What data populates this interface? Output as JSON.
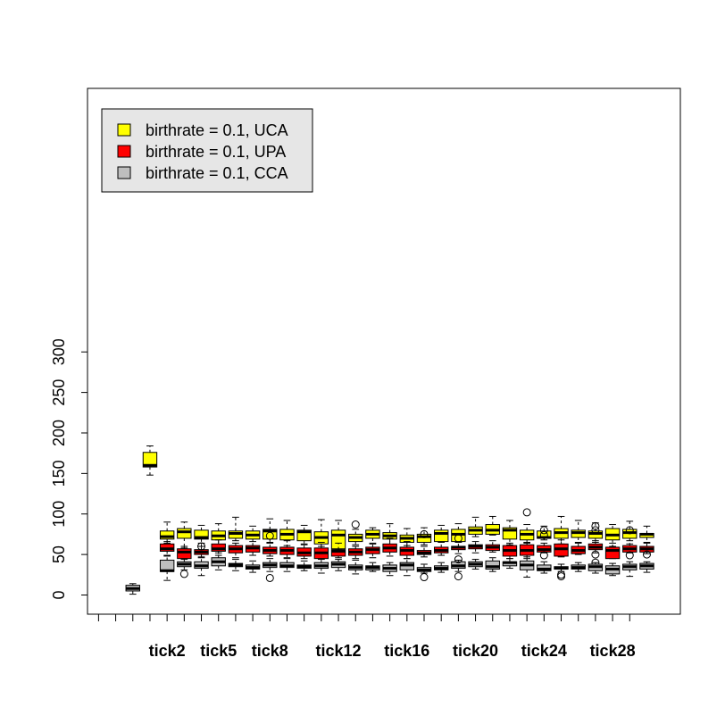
{
  "chart_data": {
    "type": "boxplot",
    "ylim": [
      -12,
      312
    ],
    "yticks": [
      0,
      50,
      100,
      150,
      200,
      250,
      300
    ],
    "x_positions": 32,
    "x_tick_labels": [
      {
        "pos": 5,
        "label": "tick2"
      },
      {
        "pos": 8,
        "label": "tick5"
      },
      {
        "pos": 11,
        "label": "tick8"
      },
      {
        "pos": 15,
        "label": "tick12"
      },
      {
        "pos": 19,
        "label": "tick16"
      },
      {
        "pos": 23,
        "label": "tick20"
      },
      {
        "pos": 27,
        "label": "tick24"
      },
      {
        "pos": 31,
        "label": "tick28"
      }
    ],
    "legend": {
      "placement": "top-left",
      "background": "#e6e6e6",
      "entries": [
        {
          "label": "birthrate = 0.1, UCA",
          "color": "#ffff00"
        },
        {
          "label": "birthrate = 0.1, UPA",
          "color": "#ff0000"
        },
        {
          "label": "birthrate = 0.1, CCA",
          "color": "#bebebe"
        }
      ]
    },
    "grid": false,
    "series": [
      {
        "name": "birthrate = 0.1, UCA",
        "color": "#ffff00",
        "boxes": [
          {
            "pos": 4,
            "lw": 148,
            "q1": 158,
            "med": 160,
            "q3": 176,
            "uw": 184,
            "out": []
          },
          {
            "pos": 5,
            "lw": 64,
            "q1": 69,
            "med": 72,
            "q3": 79,
            "uw": 90,
            "out": []
          },
          {
            "pos": 6,
            "lw": 58,
            "q1": 70,
            "med": 78,
            "q3": 82,
            "uw": 90,
            "out": []
          },
          {
            "pos": 7,
            "lw": 60,
            "q1": 69,
            "med": 71,
            "q3": 80,
            "uw": 86,
            "out": []
          },
          {
            "pos": 8,
            "lw": 61,
            "q1": 68,
            "med": 73,
            "q3": 79,
            "uw": 88,
            "out": []
          },
          {
            "pos": 9,
            "lw": 64,
            "q1": 70,
            "med": 76,
            "q3": 79,
            "uw": 96,
            "out": []
          },
          {
            "pos": 10,
            "lw": 60,
            "q1": 69,
            "med": 74,
            "q3": 79,
            "uw": 85,
            "out": []
          },
          {
            "pos": 11,
            "lw": 64,
            "q1": 69,
            "med": 79,
            "q3": 81,
            "uw": 94,
            "out": [
              73
            ]
          },
          {
            "pos": 12,
            "lw": 61,
            "q1": 68,
            "med": 75,
            "q3": 81,
            "uw": 92,
            "out": []
          },
          {
            "pos": 13,
            "lw": 62,
            "q1": 67,
            "med": 78,
            "q3": 80,
            "uw": 86,
            "out": []
          },
          {
            "pos": 14,
            "lw": 60,
            "q1": 63,
            "med": 71,
            "q3": 78,
            "uw": 93,
            "out": []
          },
          {
            "pos": 15,
            "lw": 57,
            "q1": 57,
            "med": 74,
            "q3": 80,
            "uw": 92,
            "out": []
          },
          {
            "pos": 16,
            "lw": 60,
            "q1": 66,
            "med": 71,
            "q3": 75,
            "uw": 81,
            "out": [
              87
            ]
          },
          {
            "pos": 17,
            "lw": 63,
            "q1": 70,
            "med": 75,
            "q3": 80,
            "uw": 83,
            "out": []
          },
          {
            "pos": 18,
            "lw": 59,
            "q1": 69,
            "med": 73,
            "q3": 77,
            "uw": 88,
            "out": []
          },
          {
            "pos": 19,
            "lw": 61,
            "q1": 65,
            "med": 70,
            "q3": 74,
            "uw": 82,
            "out": []
          },
          {
            "pos": 20,
            "lw": 60,
            "q1": 65,
            "med": 72,
            "q3": 75,
            "uw": 83,
            "out": [
              75
            ]
          },
          {
            "pos": 21,
            "lw": 66,
            "q1": 66,
            "med": 76,
            "q3": 80,
            "uw": 86,
            "out": []
          },
          {
            "pos": 22,
            "lw": 65,
            "q1": 66,
            "med": 75,
            "q3": 81,
            "uw": 88,
            "out": [
              70
            ]
          },
          {
            "pos": 23,
            "lw": 72,
            "q1": 75,
            "med": 80,
            "q3": 84,
            "uw": 96,
            "out": []
          },
          {
            "pos": 24,
            "lw": 74,
            "q1": 75,
            "med": 80,
            "q3": 87,
            "uw": 97,
            "out": []
          },
          {
            "pos": 25,
            "lw": 62,
            "q1": 69,
            "med": 80,
            "q3": 83,
            "uw": 92,
            "out": []
          },
          {
            "pos": 26,
            "lw": 64,
            "q1": 68,
            "med": 75,
            "q3": 80,
            "uw": 87,
            "out": [
              102
            ]
          },
          {
            "pos": 27,
            "lw": 68,
            "q1": 70,
            "med": 71,
            "q3": 79,
            "uw": 85,
            "out": [
              74,
              80
            ]
          },
          {
            "pos": 28,
            "lw": 63,
            "q1": 70,
            "med": 77,
            "q3": 82,
            "uw": 97,
            "out": []
          },
          {
            "pos": 29,
            "lw": 64,
            "q1": 71,
            "med": 77,
            "q3": 80,
            "uw": 92,
            "out": []
          },
          {
            "pos": 30,
            "lw": 65,
            "q1": 70,
            "med": 76,
            "q3": 79,
            "uw": 89,
            "out": [
              80,
              85
            ]
          },
          {
            "pos": 31,
            "lw": 60,
            "q1": 68,
            "med": 74,
            "q3": 82,
            "uw": 87,
            "out": []
          },
          {
            "pos": 32,
            "lw": 63,
            "q1": 70,
            "med": 77,
            "q3": 81,
            "uw": 91,
            "out": [
              80
            ]
          },
          {
            "pos": 33,
            "lw": 65,
            "q1": 71,
            "med": 75,
            "q3": 76,
            "uw": 85,
            "out": []
          }
        ]
      },
      {
        "name": "birthrate = 0.1, UPA",
        "color": "#ff0000",
        "boxes": [
          {
            "pos": 5,
            "lw": 48,
            "q1": 54,
            "med": 57,
            "q3": 63,
            "uw": 66,
            "out": []
          },
          {
            "pos": 6,
            "lw": 45,
            "q1": 45,
            "med": 53,
            "q3": 57,
            "uw": 60,
            "out": [
              26
            ]
          },
          {
            "pos": 7,
            "lw": 46,
            "q1": 50,
            "med": 53,
            "q3": 56,
            "uw": 64,
            "out": [
              60
            ]
          },
          {
            "pos": 8,
            "lw": 49,
            "q1": 54,
            "med": 57,
            "q3": 63,
            "uw": 68,
            "out": []
          },
          {
            "pos": 9,
            "lw": 46,
            "q1": 52,
            "med": 57,
            "q3": 61,
            "uw": 67,
            "out": []
          },
          {
            "pos": 10,
            "lw": 49,
            "q1": 53,
            "med": 58,
            "q3": 61,
            "uw": 66,
            "out": []
          },
          {
            "pos": 11,
            "lw": 48,
            "q1": 51,
            "med": 55,
            "q3": 59,
            "uw": 65,
            "out": []
          },
          {
            "pos": 12,
            "lw": 46,
            "q1": 50,
            "med": 55,
            "q3": 59,
            "uw": 67,
            "out": []
          },
          {
            "pos": 13,
            "lw": 45,
            "q1": 48,
            "med": 52,
            "q3": 58,
            "uw": 63,
            "out": []
          },
          {
            "pos": 14,
            "lw": 45,
            "q1": 45,
            "med": 52,
            "q3": 58,
            "uw": 65,
            "out": []
          },
          {
            "pos": 15,
            "lw": 46,
            "q1": 48,
            "med": 54,
            "q3": 56,
            "uw": 64,
            "out": []
          },
          {
            "pos": 16,
            "lw": 45,
            "q1": 49,
            "med": 53,
            "q3": 57,
            "uw": 62,
            "out": []
          },
          {
            "pos": 17,
            "lw": 46,
            "q1": 51,
            "med": 56,
            "q3": 59,
            "uw": 64,
            "out": []
          },
          {
            "pos": 18,
            "lw": 48,
            "q1": 53,
            "med": 58,
            "q3": 63,
            "uw": 70,
            "out": []
          },
          {
            "pos": 19,
            "lw": 45,
            "q1": 49,
            "med": 55,
            "q3": 59,
            "uw": 66,
            "out": []
          },
          {
            "pos": 20,
            "lw": 47,
            "q1": 50,
            "med": 52,
            "q3": 55,
            "uw": 62,
            "out": []
          },
          {
            "pos": 21,
            "lw": 49,
            "q1": 52,
            "med": 55,
            "q3": 59,
            "uw": 65,
            "out": []
          },
          {
            "pos": 22,
            "lw": 51,
            "q1": 56,
            "med": 59,
            "q3": 60,
            "uw": 65,
            "out": []
          },
          {
            "pos": 23,
            "lw": 52,
            "q1": 57,
            "med": 60,
            "q3": 62,
            "uw": 66,
            "out": []
          },
          {
            "pos": 24,
            "lw": 53,
            "q1": 55,
            "med": 59,
            "q3": 62,
            "uw": 67,
            "out": []
          },
          {
            "pos": 25,
            "lw": 45,
            "q1": 48,
            "med": 55,
            "q3": 61,
            "uw": 64,
            "out": []
          },
          {
            "pos": 26,
            "lw": 45,
            "q1": 49,
            "med": 55,
            "q3": 62,
            "uw": 65,
            "out": []
          },
          {
            "pos": 27,
            "lw": 52,
            "q1": 53,
            "med": 56,
            "q3": 61,
            "uw": 64,
            "out": [
              49
            ]
          },
          {
            "pos": 28,
            "lw": 47,
            "q1": 48,
            "med": 57,
            "q3": 63,
            "uw": 68,
            "out": []
          },
          {
            "pos": 29,
            "lw": 50,
            "q1": 51,
            "med": 55,
            "q3": 60,
            "uw": 65,
            "out": []
          },
          {
            "pos": 30,
            "lw": 52,
            "q1": 56,
            "med": 59,
            "q3": 63,
            "uw": 67,
            "out": [
              40,
              50
            ]
          },
          {
            "pos": 31,
            "lw": 45,
            "q1": 45,
            "med": 55,
            "q3": 59,
            "uw": 64,
            "out": []
          },
          {
            "pos": 32,
            "lw": 52,
            "q1": 53,
            "med": 57,
            "q3": 61,
            "uw": 67,
            "out": [
              49
            ]
          },
          {
            "pos": 33,
            "lw": 51,
            "q1": 53,
            "med": 57,
            "q3": 60,
            "uw": 64,
            "out": [
              50
            ]
          }
        ]
      },
      {
        "name": "birthrate = 0.1, CCA",
        "color": "#bebebe",
        "boxes": [
          {
            "pos": 3,
            "lw": 1,
            "q1": 5,
            "med": 8,
            "q3": 12,
            "uw": 14,
            "out": []
          },
          {
            "pos": 5,
            "lw": 18,
            "q1": 29,
            "med": 30,
            "q3": 43,
            "uw": 49,
            "out": []
          },
          {
            "pos": 6,
            "lw": 31,
            "q1": 35,
            "med": 38,
            "q3": 41,
            "uw": 44,
            "out": []
          },
          {
            "pos": 7,
            "lw": 24,
            "q1": 33,
            "med": 36,
            "q3": 41,
            "uw": 47,
            "out": []
          },
          {
            "pos": 8,
            "lw": 31,
            "q1": 36,
            "med": 41,
            "q3": 46,
            "uw": 52,
            "out": []
          },
          {
            "pos": 9,
            "lw": 30,
            "q1": 35,
            "med": 37,
            "q3": 39,
            "uw": 44,
            "out": []
          },
          {
            "pos": 10,
            "lw": 28,
            "q1": 32,
            "med": 34,
            "q3": 37,
            "uw": 42,
            "out": []
          },
          {
            "pos": 11,
            "lw": 29,
            "q1": 34,
            "med": 37,
            "q3": 40,
            "uw": 45,
            "out": [
              21
            ]
          },
          {
            "pos": 12,
            "lw": 29,
            "q1": 34,
            "med": 36,
            "q3": 40,
            "uw": 45,
            "out": []
          },
          {
            "pos": 13,
            "lw": 30,
            "q1": 33,
            "med": 35,
            "q3": 37,
            "uw": 42,
            "out": []
          },
          {
            "pos": 14,
            "lw": 27,
            "q1": 33,
            "med": 36,
            "q3": 40,
            "uw": 44,
            "out": []
          },
          {
            "pos": 15,
            "lw": 30,
            "q1": 34,
            "med": 38,
            "q3": 41,
            "uw": 44,
            "out": []
          },
          {
            "pos": 16,
            "lw": 26,
            "q1": 31,
            "med": 34,
            "q3": 37,
            "uw": 43,
            "out": []
          },
          {
            "pos": 17,
            "lw": 29,
            "q1": 31,
            "med": 34,
            "q3": 36,
            "uw": 40,
            "out": []
          },
          {
            "pos": 18,
            "lw": 24,
            "q1": 29,
            "med": 33,
            "q3": 37,
            "uw": 40,
            "out": []
          },
          {
            "pos": 19,
            "lw": 24,
            "q1": 31,
            "med": 37,
            "q3": 40,
            "uw": 45,
            "out": []
          },
          {
            "pos": 20,
            "lw": 27,
            "q1": 29,
            "med": 31,
            "q3": 34,
            "uw": 38,
            "out": [
              22
            ]
          },
          {
            "pos": 21,
            "lw": 28,
            "q1": 31,
            "med": 33,
            "q3": 36,
            "uw": 40,
            "out": []
          },
          {
            "pos": 22,
            "lw": 29,
            "q1": 33,
            "med": 36,
            "q3": 41,
            "uw": 43,
            "out": [
              23,
              44
            ]
          },
          {
            "pos": 23,
            "lw": 32,
            "q1": 35,
            "med": 38,
            "q3": 41,
            "uw": 44,
            "out": []
          },
          {
            "pos": 24,
            "lw": 29,
            "q1": 32,
            "med": 35,
            "q3": 42,
            "uw": 46,
            "out": []
          },
          {
            "pos": 25,
            "lw": 33,
            "q1": 36,
            "med": 40,
            "q3": 41,
            "uw": 45,
            "out": []
          },
          {
            "pos": 26,
            "lw": 22,
            "q1": 31,
            "med": 37,
            "q3": 42,
            "uw": 47,
            "out": []
          },
          {
            "pos": 27,
            "lw": 27,
            "q1": 30,
            "med": 32,
            "q3": 37,
            "uw": 41,
            "out": []
          },
          {
            "pos": 28,
            "lw": 29,
            "q1": 32,
            "med": 33,
            "q3": 35,
            "uw": 38,
            "out": [
              23,
              25
            ]
          },
          {
            "pos": 29,
            "lw": 29,
            "q1": 32,
            "med": 34,
            "q3": 37,
            "uw": 40,
            "out": []
          },
          {
            "pos": 30,
            "lw": 27,
            "q1": 30,
            "med": 35,
            "q3": 38,
            "uw": 40,
            "out": []
          },
          {
            "pos": 31,
            "lw": 24,
            "q1": 26,
            "med": 32,
            "q3": 36,
            "uw": 39,
            "out": []
          },
          {
            "pos": 32,
            "lw": 23,
            "q1": 31,
            "med": 35,
            "q3": 38,
            "uw": 41,
            "out": []
          },
          {
            "pos": 33,
            "lw": 28,
            "q1": 32,
            "med": 36,
            "q3": 39,
            "uw": 41,
            "out": []
          }
        ]
      }
    ]
  }
}
